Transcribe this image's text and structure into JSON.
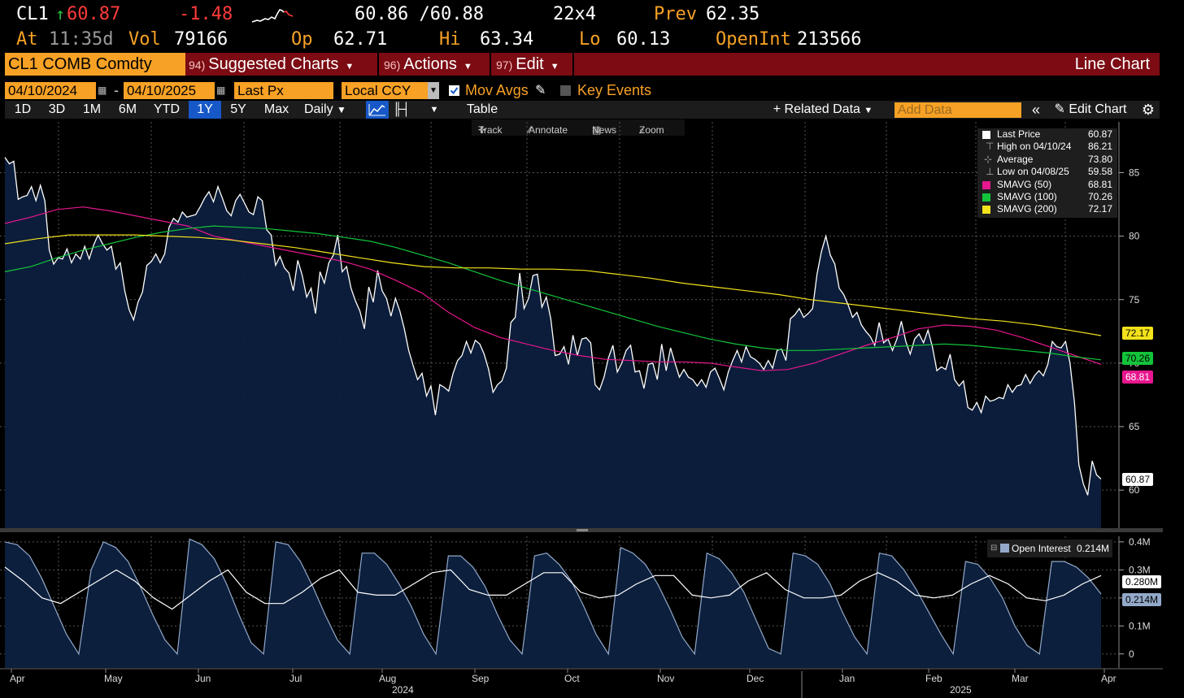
{
  "quote": {
    "ticker": "CL1",
    "last": "60.87",
    "change": "-1.48",
    "bid_ask": "60.86 /60.88",
    "bid_ask_size": "22x4",
    "prev_label": "Prev",
    "prev": "62.35",
    "time_label": "At",
    "time": "11:35d",
    "vol_label": "Vol",
    "vol": "79166",
    "open_label": "Op",
    "open": "62.71",
    "high_label": "Hi",
    "high": "63.34",
    "low_label": "Lo",
    "low": "60.13",
    "oi_label": "OpenInt",
    "oi": "213566"
  },
  "menubar": {
    "security": "CL1 COMB Comdty",
    "suggested_num": "94)",
    "suggested": "Suggested Charts",
    "actions_num": "96)",
    "actions": "Actions",
    "edit_num": "97)",
    "edit": "Edit",
    "chart_type": "Line Chart"
  },
  "controls": {
    "start_date": "04/10/2024",
    "end_date": "04/10/2025",
    "field": "Last Px",
    "currency": "Local CCY",
    "mov_avgs": "Mov Avgs",
    "key_events": "Key Events"
  },
  "toolbar": {
    "periods": [
      "1D",
      "3D",
      "1M",
      "6M",
      "YTD",
      "1Y",
      "5Y",
      "Max"
    ],
    "active_period": "1Y",
    "frequency": "Daily",
    "table": "Table",
    "related": "Related Data",
    "add_data_placeholder": "Add Data",
    "edit_chart": "Edit Chart"
  },
  "tools": {
    "track": "Track",
    "annotate": "Annotate",
    "news": "News",
    "zoom": "Zoom"
  },
  "legend": [
    {
      "name": "Last Price",
      "value": "60.87",
      "color": "#ffffff"
    },
    {
      "name": "High on 04/10/24",
      "value": "86.21",
      "color": ""
    },
    {
      "name": "Average",
      "value": "73.80",
      "color": ""
    },
    {
      "name": "Low on 04/08/25",
      "value": "59.58",
      "color": ""
    },
    {
      "name": "SMAVG (50)",
      "value": "68.81",
      "color": "#e8168e"
    },
    {
      "name": "SMAVG (100)",
      "value": "70.26",
      "color": "#13c43a"
    },
    {
      "name": "SMAVG (200)",
      "value": "72.17",
      "color": "#f2e21b"
    }
  ],
  "price_tags": {
    "sma200": "72.17",
    "sma100": "70.26",
    "sma50": "68.81",
    "last": "60.87"
  },
  "oi_legend": {
    "name": "Open Interest",
    "value": "0.214M"
  },
  "oi_tags": {
    "upper": "0.280M",
    "lower": "0.214M"
  },
  "x_axis": {
    "months": [
      "Apr",
      "May",
      "Jun",
      "Jul",
      "Aug",
      "Sep",
      "Oct",
      "Nov",
      "Dec",
      "Jan",
      "Feb",
      "Mar",
      "Apr"
    ],
    "years": [
      "2024",
      "2025"
    ]
  },
  "chart_data": [
    {
      "type": "line",
      "title": "",
      "ylim": [
        57,
        89
      ],
      "yticks": [
        60,
        65,
        70,
        75,
        80,
        85
      ],
      "series": [
        {
          "name": "Last Price",
          "color": "#ffffff",
          "points": [
            86.21,
            85.7,
            85.9,
            82.9,
            83.1,
            83.2,
            83.9,
            82.8,
            84.0,
            82.8,
            78.9,
            77.8,
            78.3,
            78.2,
            79.0,
            77.9,
            78.6,
            78.2,
            79.2,
            78.2,
            79.3,
            80.1,
            79.4,
            78.9,
            79.2,
            77.4,
            77.9,
            75.7,
            74.2,
            73.4,
            74.8,
            75.6,
            77.7,
            78.0,
            78.6,
            77.9,
            78.6,
            80.7,
            81.4,
            81.1,
            81.9,
            81.5,
            81.6,
            81.7,
            82.3,
            83.0,
            83.5,
            82.7,
            83.9,
            83.0,
            82.0,
            81.6,
            82.8,
            83.3,
            82.6,
            81.9,
            81.7,
            83.1,
            82.8,
            80.5,
            80.1,
            77.7,
            78.4,
            77.5,
            77.1,
            75.7,
            78.1,
            76.9,
            75.2,
            75.9,
            73.9,
            77.2,
            76.3,
            77.9,
            78.5,
            80.1,
            77.2,
            77.6,
            75.9,
            74.9,
            74.1,
            72.7,
            76.0,
            74.8,
            77.3,
            75.7,
            75.1,
            73.7,
            75.1,
            74.1,
            72.7,
            71.0,
            69.8,
            68.7,
            69.2,
            67.4,
            68.2,
            65.9,
            68.3,
            68.1,
            67.8,
            69.2,
            70.2,
            70.6,
            71.7,
            70.8,
            71.8,
            71.5,
            70.7,
            69.5,
            67.7,
            68.3,
            68.6,
            69.6,
            73.2,
            73.6,
            77.1,
            74.3,
            75.1,
            76.9,
            77.0,
            74.4,
            75.2,
            73.5,
            70.6,
            70.7,
            71.3,
            69.9,
            72.2,
            70.6,
            71.9,
            72.0,
            71.6,
            68.3,
            67.9,
            68.9,
            70.4,
            71.4,
            69.3,
            70.0,
            71.0,
            71.4,
            69.3,
            69.4,
            68.0,
            69.9,
            70.0,
            68.7,
            71.5,
            69.4,
            71.2,
            70.0,
            68.9,
            69.5,
            68.9,
            68.7,
            68.2,
            68.7,
            68.1,
            69.3,
            69.6,
            68.8,
            67.9,
            69.3,
            70.2,
            71.0,
            70.1,
            71.3,
            70.5,
            70.3,
            70.0,
            69.5,
            70.2,
            69.6,
            71.0,
            71.1,
            70.2,
            73.5,
            73.8,
            74.3,
            73.6,
            73.9,
            74.3,
            77.0,
            78.8,
            80.0,
            78.5,
            77.8,
            75.9,
            75.4,
            74.6,
            73.6,
            74.0,
            73.0,
            72.5,
            72.1,
            71.4,
            73.2,
            71.6,
            71.9,
            71.0,
            71.9,
            73.3,
            71.7,
            70.7,
            71.9,
            72.3,
            71.6,
            72.6,
            71.3,
            69.4,
            69.7,
            69.5,
            70.7,
            68.7,
            68.2,
            68.6,
            66.5,
            66.3,
            66.9,
            66.1,
            67.4,
            67.0,
            67.1,
            67.3,
            67.2,
            68.3,
            67.7,
            68.2,
            68.3,
            69.1,
            68.4,
            69.0,
            69.4,
            69.0,
            69.9,
            71.7,
            71.3,
            71.2,
            71.7,
            70.0,
            66.9,
            62.0,
            60.5,
            59.6,
            62.3,
            61.2,
            60.87
          ]
        },
        {
          "name": "SMAVG (50)",
          "color": "#e8168e",
          "points": [
            81.0,
            81.5,
            82.1,
            82.3,
            82.0,
            81.6,
            81.2,
            80.8,
            80.0,
            79.6,
            79.2,
            78.8,
            78.4,
            78.0,
            77.4,
            76.5,
            75.5,
            74.0,
            72.8,
            72.0,
            71.5,
            71.0,
            70.6,
            70.3,
            70.2,
            70.1,
            70.1,
            70.0,
            69.7,
            69.4,
            69.5,
            70.0,
            70.7,
            71.4,
            72.0,
            72.7,
            73.0,
            72.9,
            72.6,
            72.0,
            71.3,
            70.6,
            69.9
          ]
        },
        {
          "name": "SMAVG (100)",
          "color": "#13c43a",
          "points": [
            77.2,
            77.6,
            78.3,
            78.9,
            79.4,
            79.9,
            80.3,
            80.6,
            80.8,
            80.7,
            80.6,
            80.4,
            80.2,
            79.9,
            79.6,
            79.1,
            78.5,
            77.9,
            77.2,
            76.5,
            75.9,
            75.3,
            74.7,
            74.1,
            73.5,
            72.9,
            72.4,
            71.9,
            71.5,
            71.2,
            71.0,
            71.0,
            71.1,
            71.2,
            71.3,
            71.4,
            71.5,
            71.4,
            71.2,
            71.0,
            70.8,
            70.5,
            70.26
          ]
        },
        {
          "name": "SMAVG (200)",
          "color": "#f2e21b",
          "points": [
            79.4,
            79.8,
            80.1,
            80.1,
            80.1,
            80.0,
            79.9,
            79.7,
            79.4,
            79.1,
            78.7,
            78.3,
            77.9,
            77.6,
            77.5,
            77.5,
            77.4,
            77.4,
            77.3,
            77.0,
            76.7,
            76.3,
            76.0,
            75.7,
            75.4,
            75.0,
            74.7,
            74.4,
            74.1,
            73.8,
            73.5,
            73.3,
            73.0,
            72.6,
            72.17
          ]
        }
      ]
    },
    {
      "type": "area",
      "title": "",
      "ylim": [
        -0.05,
        0.42
      ],
      "yticks": [
        0,
        0.1,
        0.2,
        0.3,
        0.4
      ],
      "series": [
        {
          "name": "Open Interest",
          "color": "#93a9c9",
          "points": [
            0.4,
            0.39,
            0.35,
            0.27,
            0.17,
            0.07,
            0.0,
            0.3,
            0.4,
            0.38,
            0.33,
            0.24,
            0.14,
            0.05,
            0.0,
            0.41,
            0.39,
            0.34,
            0.25,
            0.14,
            0.04,
            0.0,
            0.4,
            0.39,
            0.33,
            0.24,
            0.14,
            0.05,
            0.0,
            0.36,
            0.36,
            0.32,
            0.25,
            0.17,
            0.07,
            0.0,
            0.35,
            0.35,
            0.31,
            0.24,
            0.14,
            0.05,
            0.0,
            0.35,
            0.36,
            0.32,
            0.26,
            0.17,
            0.07,
            0.0,
            0.38,
            0.36,
            0.32,
            0.25,
            0.16,
            0.06,
            0.0,
            0.36,
            0.34,
            0.29,
            0.22,
            0.12,
            0.02,
            0.0,
            0.36,
            0.35,
            0.32,
            0.25,
            0.15,
            0.06,
            0.0,
            0.36,
            0.35,
            0.3,
            0.23,
            0.15,
            0.07,
            0.0,
            0.33,
            0.32,
            0.27,
            0.2,
            0.1,
            0.03,
            0.0,
            0.33,
            0.33,
            0.31,
            0.27,
            0.214
          ]
        },
        {
          "name": "",
          "color": "#ffffff",
          "points": [
            0.31,
            0.26,
            0.2,
            0.18,
            0.22,
            0.26,
            0.3,
            0.26,
            0.2,
            0.16,
            0.21,
            0.26,
            0.3,
            0.22,
            0.18,
            0.18,
            0.22,
            0.27,
            0.3,
            0.22,
            0.21,
            0.21,
            0.25,
            0.29,
            0.3,
            0.23,
            0.21,
            0.21,
            0.25,
            0.29,
            0.29,
            0.22,
            0.2,
            0.21,
            0.25,
            0.28,
            0.28,
            0.21,
            0.2,
            0.21,
            0.26,
            0.29,
            0.23,
            0.2,
            0.2,
            0.21,
            0.26,
            0.29,
            0.26,
            0.21,
            0.2,
            0.21,
            0.25,
            0.28,
            0.25,
            0.2,
            0.19,
            0.21,
            0.25,
            0.28
          ]
        }
      ]
    }
  ]
}
